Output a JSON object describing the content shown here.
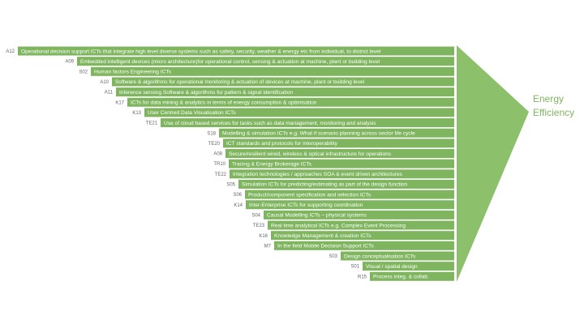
{
  "rows": [
    {
      "code": "A12",
      "label": "Operational decision support ICTs that integrate high level diverse systems such as safety, security, weather & energy etc from individual, to district level"
    },
    {
      "code": "A09",
      "label": "Embedded intelligent devices (micro architecture)for operational control, sensing & actuation at machine, plant or building level"
    },
    {
      "code": "S02",
      "label": "Human factors Engineering ICTs"
    },
    {
      "code": "A10",
      "label": "Software & algorithms for operational monitoring & actuation of devices at machine, plant or building level"
    },
    {
      "code": "A11",
      "label": "Inference sensing Software & algorithms for pattern & signal identification"
    },
    {
      "code": "K17",
      "label": "ICTs for data mining & analytics in terms of energy consumption & optimisation"
    },
    {
      "code": "K13",
      "label": "User Centred Data Visualisation ICTs"
    },
    {
      "code": "TE21",
      "label": "Use of cloud based services for tasks such as data management, monitoring and analysis"
    },
    {
      "code": "S18",
      "label": "Modelling & simulation ICTs e.g. What if scenario planning across sector life cycle"
    },
    {
      "code": "TE20",
      "label": "ICT standards and protocols for interoperability"
    },
    {
      "code": "A08",
      "label": "Secure/resilient wired, wireless & optical infrastructure for operations"
    },
    {
      "code": "TR10",
      "label": "Tracing & Energy Brokerage ICTs"
    },
    {
      "code": "TE22",
      "label": "Integration technologies / approaches SOA & event driven architectures"
    },
    {
      "code": "S05",
      "label": "Simulation ICTs for predicting/estimating as part of the design function"
    },
    {
      "code": "S06",
      "label": "Product/component specification and selection ICTs"
    },
    {
      "code": "K14",
      "label": "Inter-Enterprise ICTs for supporting coordination"
    },
    {
      "code": "S04",
      "label": "Causal Modelling ICTs – physical systems"
    },
    {
      "code": "TE23",
      "label": "Real time analytical ICTs e.g. Complex Event Processing"
    },
    {
      "code": "K16",
      "label": "Knowledge Management & creation ICTs"
    },
    {
      "code": "M7",
      "label": "In the field Mobile Decision Support ICTs"
    },
    {
      "code": "S03",
      "label": "Design conceptualisation ICTs"
    },
    {
      "code": "S01",
      "label": "Visual / spatial design"
    },
    {
      "code": "R15",
      "label": "Process integ. & collab."
    }
  ],
  "target": {
    "line1": "Energy",
    "line2": "Efficiency"
  }
}
